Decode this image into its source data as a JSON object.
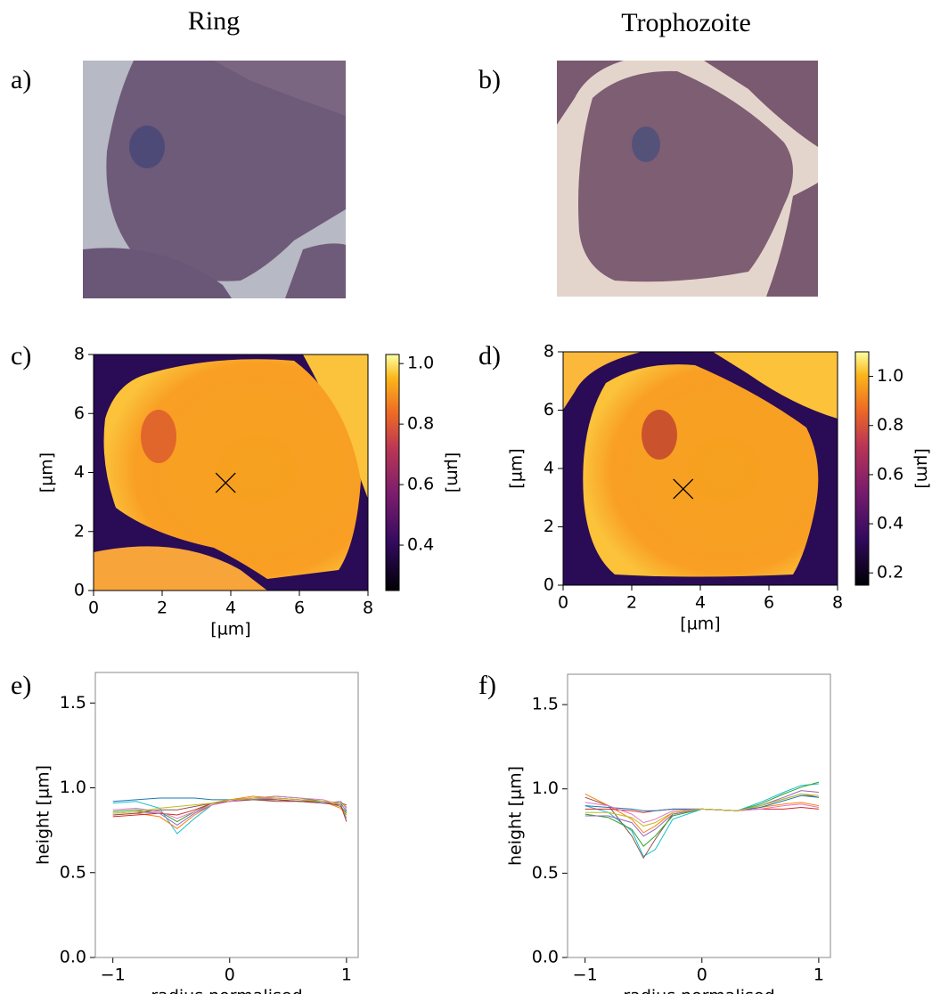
{
  "columns": [
    "Ring",
    "Trophozoite"
  ],
  "panels": [
    "a)",
    "b)",
    "c)",
    "d)",
    "e)",
    "f)"
  ],
  "chart_data": [
    {
      "type": "heatmap",
      "xlabel": "[µm]",
      "ylabel": "[µm]",
      "colorbar_label": "[µm]",
      "xlim": [
        0,
        8
      ],
      "ylim": [
        0,
        8
      ],
      "xticks": [
        0,
        2,
        4,
        6,
        8
      ],
      "yticks": [
        0,
        2,
        4,
        6,
        8
      ],
      "clim": [
        0.25,
        1.03
      ],
      "cticks": [
        0.4,
        0.6,
        0.8,
        {
          "value": 1.0,
          "label": "1.0"
        }
      ],
      "marker": {
        "x": 3.85,
        "y": 3.65
      }
    },
    {
      "type": "heatmap",
      "xlabel": "[µm]",
      "ylabel": "[µm]",
      "colorbar_label": "[µm]",
      "xlim": [
        0,
        8
      ],
      "ylim": [
        0,
        8
      ],
      "xticks": [
        0,
        2,
        4,
        6,
        8
      ],
      "yticks": [
        0,
        2,
        4,
        6,
        8
      ],
      "clim": [
        0.15,
        1.1
      ],
      "cticks": [
        0.2,
        0.4,
        0.6,
        0.8,
        {
          "value": 1.0,
          "label": "1.0"
        }
      ],
      "marker": {
        "x": 3.5,
        "y": 3.3
      }
    },
    {
      "type": "line",
      "xlabel": "radius normalised",
      "ylabel": "height [µm]",
      "xlim": [
        -1.15,
        1.1
      ],
      "ylim": [
        0,
        1.68
      ],
      "xticks": [
        {
          "value": -1,
          "label": "−1"
        },
        0,
        1
      ],
      "yticks": [
        {
          "value": 0,
          "label": "0.0"
        },
        0.5,
        {
          "value": 1,
          "label": "1.0"
        },
        1.5
      ],
      "x": [
        -1,
        -0.8,
        -0.6,
        -0.45,
        -0.3,
        -0.15,
        0,
        0.2,
        0.4,
        0.6,
        0.8,
        0.95,
        1
      ],
      "series": [
        {
          "color": "#17becf",
          "values": [
            0.91,
            0.92,
            0.88,
            0.73,
            0.82,
            0.9,
            0.93,
            0.94,
            0.93,
            0.92,
            0.91,
            0.9,
            0.82
          ]
        },
        {
          "color": "#1f77b4",
          "values": [
            0.92,
            0.93,
            0.94,
            0.94,
            0.94,
            0.93,
            0.93,
            0.93,
            0.93,
            0.92,
            0.92,
            0.91,
            0.86
          ]
        },
        {
          "color": "#ff7f0e",
          "values": [
            0.84,
            0.85,
            0.83,
            0.76,
            0.84,
            0.9,
            0.93,
            0.95,
            0.94,
            0.93,
            0.92,
            0.88,
            0.84
          ]
        },
        {
          "color": "#2ca02c",
          "values": [
            0.86,
            0.87,
            0.86,
            0.8,
            0.86,
            0.91,
            0.93,
            0.94,
            0.95,
            0.94,
            0.92,
            0.89,
            0.85
          ]
        },
        {
          "color": "#d62728",
          "values": [
            0.83,
            0.84,
            0.85,
            0.84,
            0.87,
            0.91,
            0.93,
            0.93,
            0.93,
            0.92,
            0.91,
            0.9,
            0.8
          ]
        },
        {
          "color": "#9467bd",
          "values": [
            0.85,
            0.86,
            0.85,
            0.78,
            0.85,
            0.9,
            0.92,
            0.93,
            0.94,
            0.93,
            0.91,
            0.92,
            0.88
          ]
        },
        {
          "color": "#8c564b",
          "values": [
            0.84,
            0.85,
            0.87,
            0.87,
            0.89,
            0.91,
            0.92,
            0.93,
            0.92,
            0.92,
            0.92,
            0.91,
            0.9
          ]
        },
        {
          "color": "#e377c2",
          "values": [
            0.87,
            0.88,
            0.86,
            0.82,
            0.86,
            0.9,
            0.92,
            0.94,
            0.95,
            0.94,
            0.93,
            0.9,
            0.87
          ]
        },
        {
          "color": "#bcbd22",
          "values": [
            0.85,
            0.86,
            0.88,
            0.89,
            0.9,
            0.91,
            0.93,
            0.94,
            0.94,
            0.93,
            0.92,
            0.91,
            0.89
          ]
        }
      ]
    },
    {
      "type": "line",
      "xlabel": "radius normalised",
      "ylabel": "height [µm]",
      "xlim": [
        -1.15,
        1.1
      ],
      "ylim": [
        0,
        1.68
      ],
      "xticks": [
        {
          "value": -1,
          "label": "−1"
        },
        0,
        1
      ],
      "yticks": [
        {
          "value": 0,
          "label": "0.0"
        },
        0.5,
        {
          "value": 1,
          "label": "1.0"
        },
        1.5
      ],
      "x": [
        -1,
        -0.8,
        -0.6,
        -0.5,
        -0.4,
        -0.25,
        0,
        0.3,
        0.5,
        0.7,
        0.85,
        1
      ],
      "series": [
        {
          "color": "#17becf",
          "values": [
            0.9,
            0.86,
            0.75,
            0.6,
            0.64,
            0.82,
            0.88,
            0.87,
            0.92,
            0.98,
            1.02,
            1.03
          ]
        },
        {
          "color": "#8c564b",
          "values": [
            0.95,
            0.9,
            0.72,
            0.59,
            0.7,
            0.85,
            0.88,
            0.87,
            0.9,
            0.94,
            0.97,
            0.95
          ]
        },
        {
          "color": "#2ca02c",
          "values": [
            0.85,
            0.83,
            0.76,
            0.66,
            0.72,
            0.84,
            0.88,
            0.87,
            0.91,
            0.97,
            1.01,
            1.04
          ]
        },
        {
          "color": "#ff7f0e",
          "values": [
            0.97,
            0.9,
            0.82,
            0.74,
            0.78,
            0.86,
            0.88,
            0.87,
            0.89,
            0.91,
            0.92,
            0.9
          ]
        },
        {
          "color": "#d62728",
          "values": [
            0.88,
            0.88,
            0.87,
            0.86,
            0.87,
            0.88,
            0.88,
            0.87,
            0.88,
            0.88,
            0.89,
            0.88
          ]
        },
        {
          "color": "#9467bd",
          "values": [
            0.84,
            0.84,
            0.8,
            0.72,
            0.76,
            0.85,
            0.88,
            0.87,
            0.9,
            0.95,
            0.99,
            0.98
          ]
        },
        {
          "color": "#1f77b4",
          "values": [
            0.9,
            0.89,
            0.88,
            0.87,
            0.87,
            0.88,
            0.88,
            0.87,
            0.89,
            0.93,
            0.96,
            0.95
          ]
        },
        {
          "color": "#e377c2",
          "values": [
            0.92,
            0.9,
            0.85,
            0.8,
            0.82,
            0.87,
            0.88,
            0.87,
            0.88,
            0.9,
            0.91,
            0.89
          ]
        },
        {
          "color": "#bcbd22",
          "values": [
            0.86,
            0.86,
            0.83,
            0.78,
            0.8,
            0.86,
            0.88,
            0.87,
            0.9,
            0.94,
            0.97,
            0.96
          ]
        }
      ]
    }
  ]
}
